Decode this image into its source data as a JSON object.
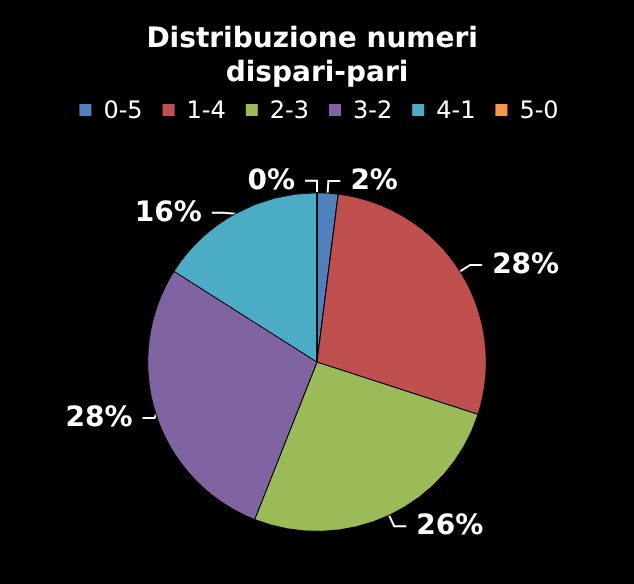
{
  "chart_data": {
    "type": "pie",
    "title": "Distribuzione numeri dispari-pari",
    "categories": [
      "0-5",
      "1-4",
      "2-3",
      "3-2",
      "4-1",
      "5-0"
    ],
    "values": [
      2,
      28,
      26,
      28,
      16,
      0
    ],
    "value_labels": [
      "2%",
      "28%",
      "26%",
      "28%",
      "16%",
      "0%"
    ],
    "colors": [
      "#4f81bd",
      "#c0504d",
      "#9bbb59",
      "#8064a2",
      "#4bacc6",
      "#f79646"
    ],
    "legend": "top"
  }
}
